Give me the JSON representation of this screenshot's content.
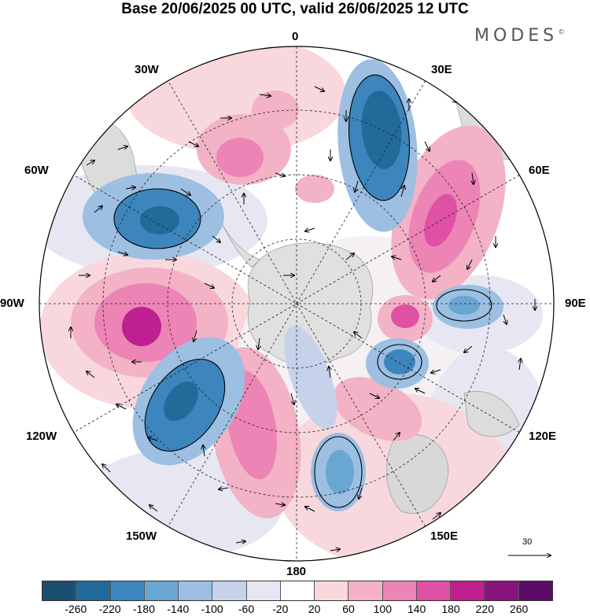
{
  "title": "Base 20/06/2025 00 UTC, valid 26/06/2025 12 UTC",
  "brand": "MODES",
  "brand_mark": "©",
  "longitude_labels": {
    "deg0": "0",
    "e30": "30E",
    "e60": "60E",
    "e90": "90E",
    "e120": "120E",
    "e150": "150E",
    "deg180": "180",
    "w150": "150W",
    "w120": "120W",
    "w90": "90W",
    "w60": "60W",
    "w30": "30W"
  },
  "vector_reference": {
    "label": "30"
  },
  "colorbar": {
    "ticks": [
      "-260",
      "-220",
      "-180",
      "-140",
      "-100",
      "-60",
      "-20",
      "20",
      "60",
      "100",
      "140",
      "180",
      "220",
      "260"
    ],
    "colors": [
      "#1c4f6f",
      "#226a9a",
      "#3c86bd",
      "#6aa6d2",
      "#9cbfe2",
      "#c6d2ea",
      "#e6e7f3",
      "#ffffff",
      "#f8d8dc",
      "#f3b2c5",
      "#ec84b5",
      "#e050a5",
      "#c0208f",
      "#8a147e",
      "#5c0c68"
    ]
  },
  "anomaly_colors": {
    "strong_negative": "#226a9a",
    "negative": "#6aa6d2",
    "weak_negative": "#c6d2ea",
    "weak_positive": "#f8d8dc",
    "positive": "#ec84b5",
    "strong_positive": "#c0208f",
    "land": "#e0e0e0"
  }
}
